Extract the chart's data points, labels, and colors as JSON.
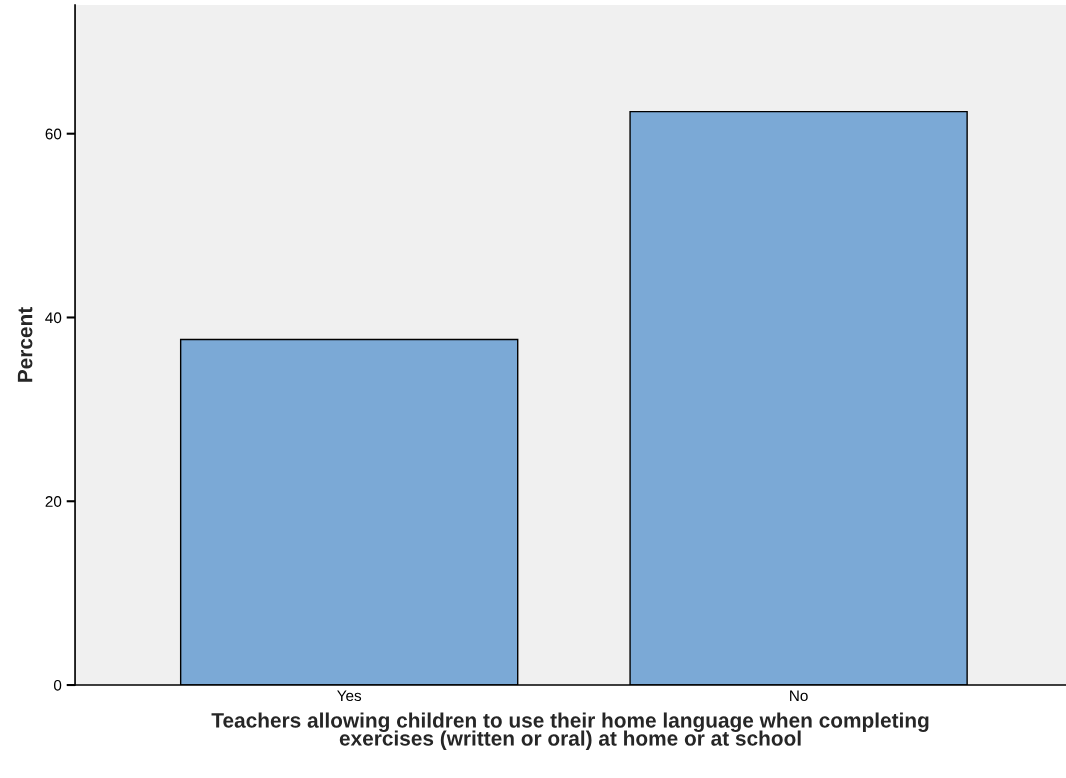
{
  "chart_data": {
    "type": "bar",
    "xlabel": "Teachers allowing children to use their home language when completing\nexercises (written or oral) at home or at school",
    "ylabel": "Percent",
    "categories": [
      "Yes",
      "No"
    ],
    "values": [
      37.6,
      62.4
    ],
    "color": "#7ba9d6",
    "ylim": [
      0,
      74
    ],
    "yticks": [
      0,
      20,
      40,
      60
    ]
  }
}
